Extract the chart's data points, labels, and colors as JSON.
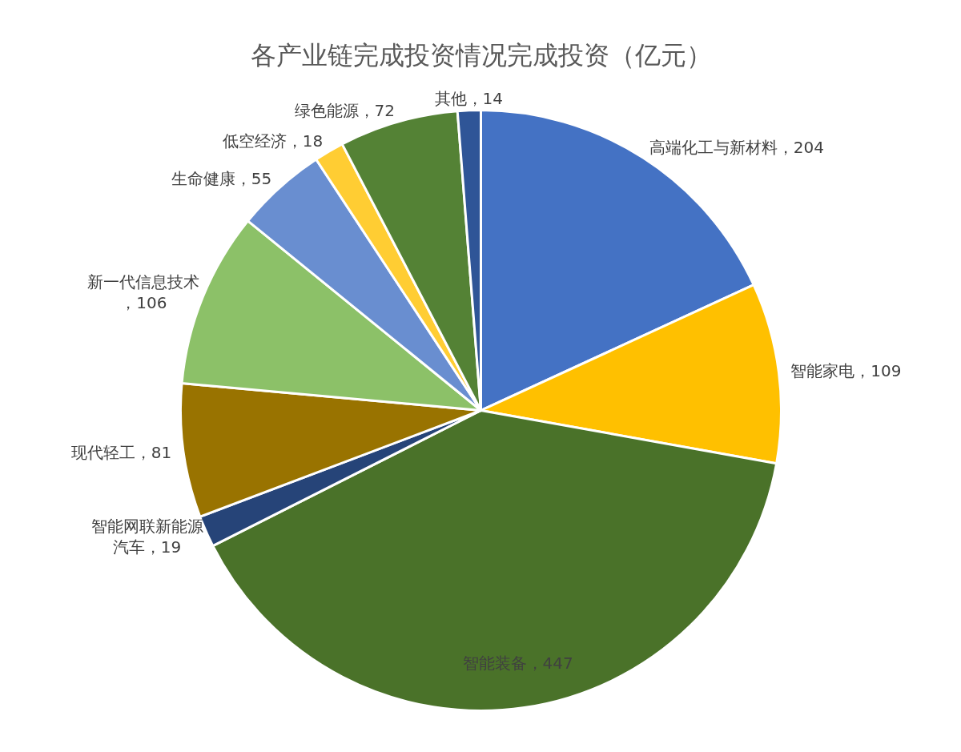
{
  "chart_data": {
    "type": "pie",
    "title": "各产业链完成投资情况完成投资（亿元）",
    "categories": [
      "高端化工与新材料",
      "智能家电",
      "智能装备",
      "智能网联新能源汽车",
      "现代轻工",
      "新一代信息技术",
      "生命健康",
      "低空经济",
      "绿色能源",
      "其他"
    ],
    "values": [
      204,
      109,
      447,
      19,
      81,
      106,
      55,
      18,
      72,
      14
    ],
    "colors": [
      "#4472c4",
      "#ffc000",
      "#4a7229",
      "#264478",
      "#997300",
      "#8cc168",
      "#698ed0",
      "#ffcd33",
      "#548235",
      "#2f5597"
    ],
    "value_labels": [
      "，204",
      "，109",
      "，447",
      "，19",
      "，81",
      "，106",
      "，55",
      "，18",
      "，72",
      "，14"
    ]
  }
}
